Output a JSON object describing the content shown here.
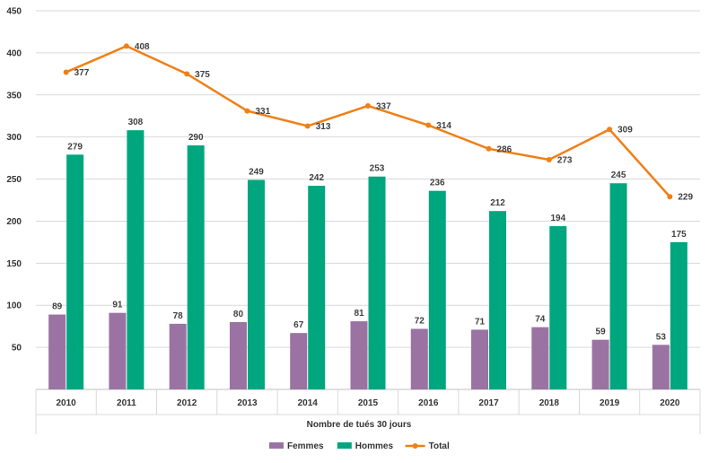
{
  "chart_data": {
    "type": "bar",
    "title": "",
    "xlabel": "Nombre de tués 30 jours",
    "ylabel": "",
    "ylim": [
      0,
      450
    ],
    "yticks": [
      50,
      100,
      150,
      200,
      250,
      300,
      350,
      400,
      450
    ],
    "grid": true,
    "legend_position": "bottom",
    "categories": [
      "2010",
      "2011",
      "2012",
      "2013",
      "2014",
      "2015",
      "2016",
      "2017",
      "2018",
      "2019",
      "2020"
    ],
    "series": [
      {
        "name": "Femmes",
        "type": "bar",
        "color": "#9a73a3",
        "values": [
          89,
          91,
          78,
          80,
          67,
          81,
          72,
          71,
          74,
          59,
          53
        ]
      },
      {
        "name": "Hommes",
        "type": "bar",
        "color": "#00a67e",
        "values": [
          279,
          308,
          290,
          249,
          242,
          253,
          236,
          212,
          194,
          245,
          175
        ]
      },
      {
        "name": "Total",
        "type": "line",
        "color": "#f07f16",
        "values": [
          377,
          408,
          375,
          331,
          313,
          337,
          314,
          286,
          273,
          309,
          229
        ]
      }
    ]
  }
}
